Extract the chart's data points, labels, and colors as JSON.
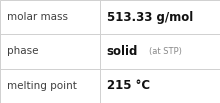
{
  "rows": [
    {
      "label": "molar mass",
      "value": "513.33 g/mol",
      "value_suffix": null
    },
    {
      "label": "phase",
      "value": "solid",
      "value_suffix": "(at STP)"
    },
    {
      "label": "melting point",
      "value": "215 °C",
      "value_suffix": null
    }
  ],
  "background_color": "#ffffff",
  "border_color": "#d0d0d0",
  "label_color": "#404040",
  "value_color": "#111111",
  "suffix_color": "#888888",
  "label_fontsize": 7.5,
  "value_fontsize": 8.5,
  "suffix_fontsize": 6.0,
  "col_split": 0.455
}
